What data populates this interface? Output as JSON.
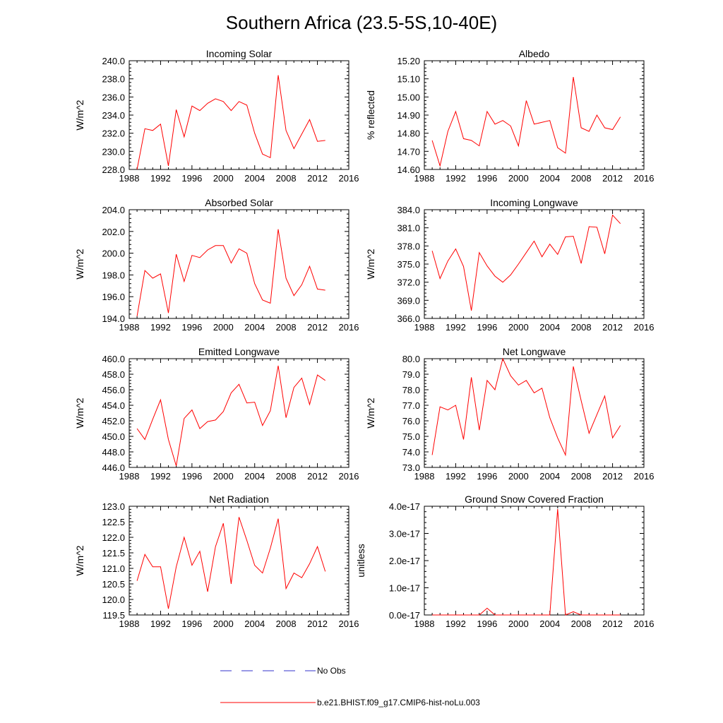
{
  "title": "Southern Africa (23.5-5S,10-40E)",
  "legend": {
    "obs_label": "No Obs",
    "obs_color": "#3333cc",
    "model_label": "b.e21.BHIST.f09_g17.CMIP6-hist-noLu.003",
    "model_color": "#ff0000"
  },
  "chart_data": [
    {
      "type": "line",
      "title": "Incoming Solar",
      "ylabel": "W/m^2",
      "xlim": [
        1988,
        2016
      ],
      "ylim": [
        228.0,
        240.0
      ],
      "x_ticks": [
        "1988",
        "1992",
        "1996",
        "2000",
        "2004",
        "2008",
        "2012",
        "2016"
      ],
      "y_ticks": [
        "228.0",
        "230.0",
        "232.0",
        "234.0",
        "236.0",
        "238.0",
        "240.0"
      ],
      "x": [
        1989,
        1990,
        1991,
        1992,
        1993,
        1994,
        1995,
        1996,
        1997,
        1998,
        1999,
        2000,
        2001,
        2002,
        2003,
        2004,
        2005,
        2006,
        2007,
        2008,
        2009,
        2010,
        2011,
        2012,
        2013
      ],
      "y": [
        228.0,
        232.5,
        232.3,
        233.0,
        228.4,
        234.6,
        231.6,
        235.0,
        234.5,
        235.3,
        235.8,
        235.5,
        234.5,
        235.5,
        235.1,
        232.0,
        229.7,
        229.3,
        238.4,
        232.3,
        230.3,
        231.9,
        233.5,
        231.1,
        231.2
      ]
    },
    {
      "type": "line",
      "title": "Albedo",
      "ylabel": "% reflected",
      "xlim": [
        1988,
        2016
      ],
      "ylim": [
        14.6,
        15.2
      ],
      "x_ticks": [
        "1988",
        "1992",
        "1996",
        "2000",
        "2004",
        "2008",
        "2012",
        "2016"
      ],
      "y_ticks": [
        "14.60",
        "14.70",
        "14.80",
        "14.90",
        "15.00",
        "15.10",
        "15.20"
      ],
      "x": [
        1989,
        1990,
        1991,
        1992,
        1993,
        1994,
        1995,
        1996,
        1997,
        1998,
        1999,
        2000,
        2001,
        2002,
        2003,
        2004,
        2005,
        2006,
        2007,
        2008,
        2009,
        2010,
        2011,
        2012,
        2013
      ],
      "y": [
        14.76,
        14.62,
        14.81,
        14.92,
        14.77,
        14.76,
        14.73,
        14.92,
        14.85,
        14.87,
        14.84,
        14.73,
        14.98,
        14.85,
        14.86,
        14.87,
        14.72,
        14.69,
        15.11,
        14.83,
        14.81,
        14.9,
        14.83,
        14.82,
        14.89
      ]
    },
    {
      "type": "line",
      "title": "Absorbed Solar",
      "ylabel": "W/m^2",
      "xlim": [
        1988,
        2016
      ],
      "ylim": [
        194.0,
        204.0
      ],
      "x_ticks": [
        "1988",
        "1992",
        "1996",
        "2000",
        "2004",
        "2008",
        "2012",
        "2016"
      ],
      "y_ticks": [
        "194.0",
        "196.0",
        "198.0",
        "200.0",
        "202.0",
        "204.0"
      ],
      "x": [
        1989,
        1990,
        1991,
        1992,
        1993,
        1994,
        1995,
        1996,
        1997,
        1998,
        1999,
        2000,
        2001,
        2002,
        2003,
        2004,
        2005,
        2006,
        2007,
        2008,
        2009,
        2010,
        2011,
        2012,
        2013
      ],
      "y": [
        194.2,
        198.4,
        197.7,
        198.1,
        194.5,
        199.9,
        197.4,
        199.8,
        199.6,
        200.3,
        200.7,
        200.7,
        199.1,
        200.4,
        200.0,
        197.2,
        195.7,
        195.4,
        202.2,
        197.7,
        196.1,
        197.1,
        198.8,
        196.7,
        196.6
      ]
    },
    {
      "type": "line",
      "title": "Incoming Longwave",
      "ylabel": "W/m^2",
      "xlim": [
        1988,
        2016
      ],
      "ylim": [
        366.0,
        384.0
      ],
      "x_ticks": [
        "1988",
        "1992",
        "1996",
        "2000",
        "2004",
        "2008",
        "2012",
        "2016"
      ],
      "y_ticks": [
        "366.0",
        "369.0",
        "372.0",
        "375.0",
        "378.0",
        "381.0",
        "384.0"
      ],
      "x": [
        1989,
        1990,
        1991,
        1992,
        1993,
        1994,
        1995,
        1996,
        1997,
        1998,
        1999,
        2000,
        2001,
        2002,
        2003,
        2004,
        2005,
        2006,
        2007,
        2008,
        2009,
        2010,
        2011,
        2012,
        2013
      ],
      "y": [
        377.2,
        372.6,
        375.5,
        377.5,
        374.6,
        367.3,
        376.9,
        374.7,
        373.0,
        372.0,
        373.2,
        375.0,
        376.9,
        378.8,
        376.2,
        378.3,
        376.6,
        379.5,
        379.6,
        375.1,
        381.2,
        381.1,
        376.7,
        383.1,
        381.7
      ]
    },
    {
      "type": "line",
      "title": "Emitted Longwave",
      "ylabel": "W/m^2",
      "xlim": [
        1988,
        2016
      ],
      "ylim": [
        446.0,
        460.0
      ],
      "x_ticks": [
        "1988",
        "1992",
        "1996",
        "2000",
        "2004",
        "2008",
        "2012",
        "2016"
      ],
      "y_ticks": [
        "446.0",
        "448.0",
        "450.0",
        "452.0",
        "454.0",
        "456.0",
        "458.0",
        "460.0"
      ],
      "x": [
        1989,
        1990,
        1991,
        1992,
        1993,
        1994,
        1995,
        1996,
        1997,
        1998,
        1999,
        2000,
        2001,
        2002,
        2003,
        2004,
        2005,
        2006,
        2007,
        2008,
        2009,
        2010,
        2011,
        2012,
        2013
      ],
      "y": [
        451.0,
        449.6,
        452.2,
        454.7,
        449.6,
        446.2,
        452.3,
        453.4,
        451.0,
        451.9,
        452.1,
        453.2,
        455.6,
        456.7,
        454.3,
        454.4,
        451.4,
        453.3,
        459.1,
        452.4,
        456.3,
        457.5,
        454.1,
        457.9,
        457.2
      ]
    },
    {
      "type": "line",
      "title": "Net Longwave",
      "ylabel": "W/m^2",
      "xlim": [
        1988,
        2016
      ],
      "ylim": [
        73.0,
        80.0
      ],
      "x_ticks": [
        "1988",
        "1992",
        "1996",
        "2000",
        "2004",
        "2008",
        "2012",
        "2016"
      ],
      "y_ticks": [
        "73.0",
        "74.0",
        "75.0",
        "76.0",
        "77.0",
        "78.0",
        "79.0",
        "80.0"
      ],
      "x": [
        1989,
        1990,
        1991,
        1992,
        1993,
        1994,
        1995,
        1996,
        1997,
        1998,
        1999,
        2000,
        2001,
        2002,
        2003,
        2004,
        2005,
        2006,
        2007,
        2008,
        2009,
        2010,
        2011,
        2012,
        2013
      ],
      "y": [
        73.8,
        76.9,
        76.7,
        77.0,
        74.8,
        78.8,
        75.4,
        78.6,
        78.0,
        80.0,
        78.9,
        78.3,
        78.6,
        77.8,
        78.1,
        76.2,
        74.9,
        73.8,
        79.5,
        77.3,
        75.2,
        76.4,
        77.6,
        74.9,
        75.7
      ]
    },
    {
      "type": "line",
      "title": "Net Radiation",
      "ylabel": "W/m^2",
      "xlim": [
        1988,
        2016
      ],
      "ylim": [
        119.5,
        123.0
      ],
      "x_ticks": [
        "1988",
        "1992",
        "1996",
        "2000",
        "2004",
        "2008",
        "2012",
        "2016"
      ],
      "y_ticks": [
        "119.5",
        "120.0",
        "120.5",
        "121.0",
        "121.5",
        "122.0",
        "122.5",
        "123.0"
      ],
      "x": [
        1989,
        1990,
        1991,
        1992,
        1993,
        1994,
        1995,
        1996,
        1997,
        1998,
        1999,
        2000,
        2001,
        2002,
        2003,
        2004,
        2005,
        2006,
        2007,
        2008,
        2009,
        2010,
        2011,
        2012,
        2013
      ],
      "y": [
        120.6,
        121.45,
        121.05,
        121.05,
        119.7,
        121.05,
        122.0,
        121.1,
        121.55,
        120.25,
        121.7,
        122.45,
        120.5,
        122.65,
        121.9,
        121.1,
        120.85,
        121.65,
        122.6,
        120.35,
        120.85,
        120.7,
        121.15,
        121.7,
        120.9
      ]
    },
    {
      "type": "line",
      "title": "Ground Snow Covered Fraction",
      "ylabel": "unitless",
      "xlim": [
        1988,
        2016
      ],
      "ylim": [
        0,
        4e-17
      ],
      "x_ticks": [
        "1988",
        "1992",
        "1996",
        "2000",
        "2004",
        "2008",
        "2012",
        "2016"
      ],
      "y_ticks": [
        "0.0e-17",
        "1.0e-17",
        "2.0e-17",
        "3.0e-17",
        "4.0e-17"
      ],
      "x": [
        1989,
        1990,
        1991,
        1992,
        1993,
        1994,
        1995,
        1996,
        1997,
        1998,
        1999,
        2000,
        2001,
        2002,
        2003,
        2004,
        2005,
        2006,
        2007,
        2008,
        2009,
        2010,
        2011,
        2012,
        2013
      ],
      "y": [
        0,
        0,
        0,
        0,
        0,
        0,
        0,
        2.5e-18,
        0,
        0,
        0,
        0,
        0,
        0,
        0,
        0,
        3.9e-17,
        0,
        1.2e-18,
        0,
        0,
        0,
        0,
        0,
        0
      ]
    }
  ]
}
